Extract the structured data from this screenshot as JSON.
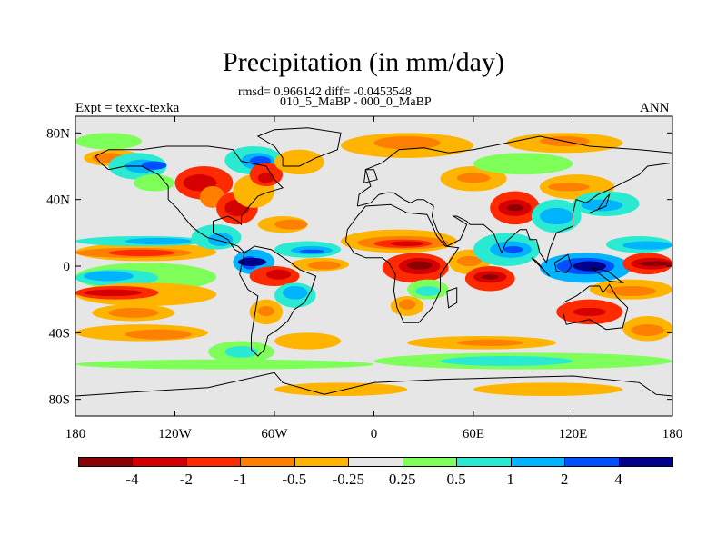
{
  "header": {
    "title": "Precipitation (in mm/day)",
    "stats": "rmsd= 0.966142 diff= -0.0453548",
    "experiment_names": "010_5_MaBP - 000_0_MaBP",
    "expt_label": "Expt = texxc-texka",
    "season": "ANN"
  },
  "chart_data": {
    "type": "heatmap",
    "title": "Precipitation (in mm/day)",
    "subtitle": "rmsd= 0.966142 diff= -0.0453548",
    "projection": "cylindrical equidistant",
    "x_range": [
      -180,
      180
    ],
    "y_range": [
      -90,
      90
    ],
    "x_ticks": [
      {
        "value": -180,
        "label": "180"
      },
      {
        "value": -120,
        "label": "120W"
      },
      {
        "value": -60,
        "label": "60W"
      },
      {
        "value": 0,
        "label": "0"
      },
      {
        "value": 60,
        "label": "60E"
      },
      {
        "value": 120,
        "label": "120E"
      },
      {
        "value": 180,
        "label": "180"
      }
    ],
    "y_ticks": [
      {
        "value": 80,
        "label": "80N"
      },
      {
        "value": 40,
        "label": "40N"
      },
      {
        "value": 0,
        "label": "0"
      },
      {
        "value": -40,
        "label": "40S"
      },
      {
        "value": -80,
        "label": "80S"
      }
    ],
    "colorbar": {
      "levels": [
        "-4",
        "-2",
        "-1",
        "-0.5",
        "-0.25",
        "0.25",
        "0.5",
        "1",
        "2",
        "4"
      ],
      "colors": [
        "#8b0000",
        "#d50000",
        "#ff2a00",
        "#ff7f00",
        "#ffb400",
        "#e6e6e6",
        "#7fff5a",
        "#2aebd2",
        "#00b4ff",
        "#0050ff",
        "#00008b"
      ]
    }
  }
}
